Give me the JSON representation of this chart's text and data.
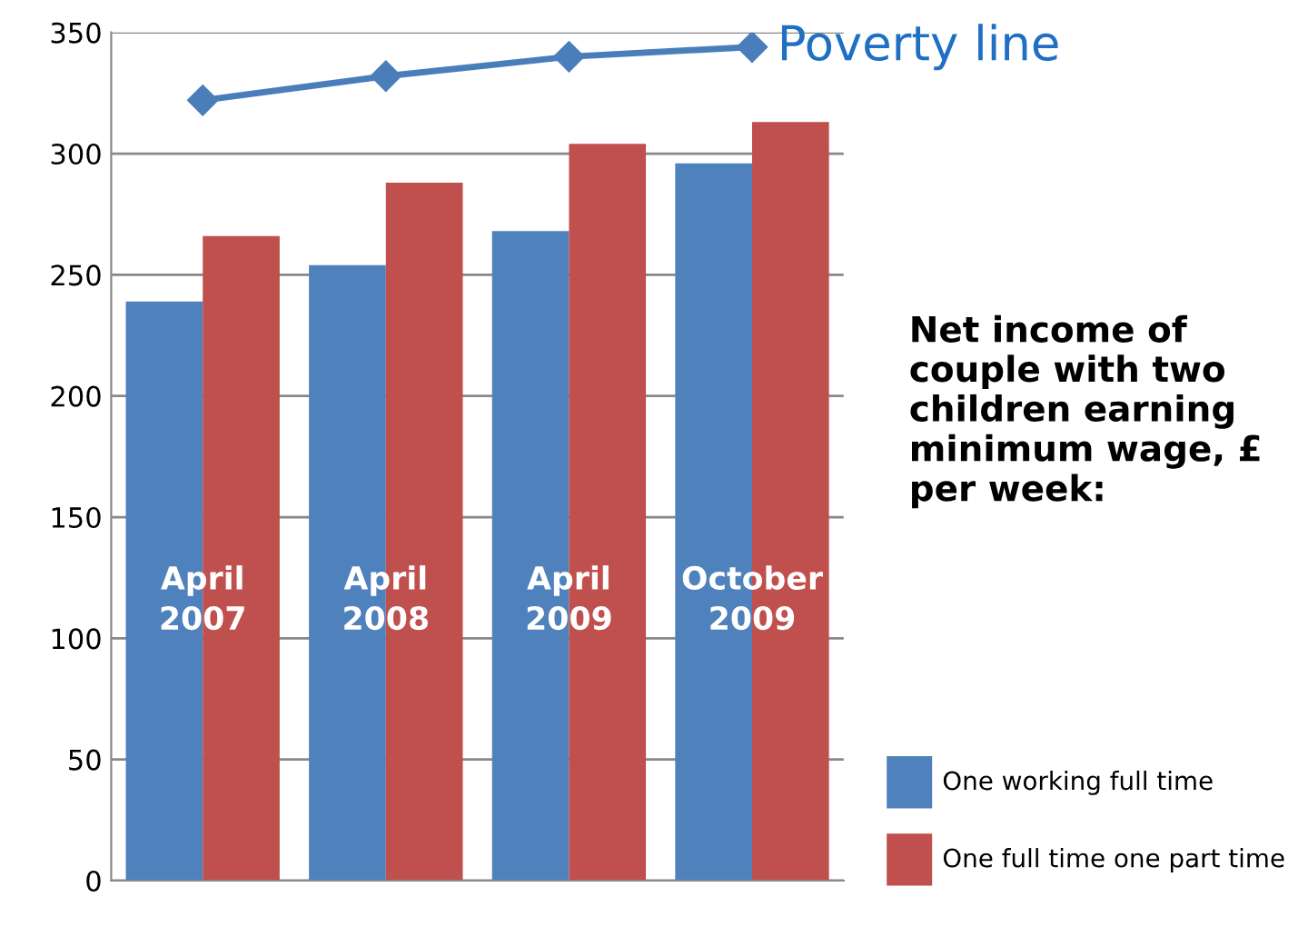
{
  "chart_data": {
    "type": "bar",
    "categories": [
      "April 2007",
      "April 2008",
      "April 2009",
      "October 2009"
    ],
    "series": [
      {
        "name": "One working full time",
        "color": "#4f81bd",
        "values": [
          239,
          254,
          268,
          296
        ]
      },
      {
        "name": "One full time one part time",
        "color": "#c0504d",
        "values": [
          266,
          288,
          304,
          313
        ]
      },
      {
        "name": "Poverty line",
        "type": "line",
        "color": "#4a7ebb",
        "values": [
          322,
          332,
          340,
          344
        ],
        "marker": "diamond",
        "line_style": "solid"
      }
    ],
    "legend_title": "Net income of couple with two children earning minimum wage, £ per week:",
    "ylim": [
      0,
      350
    ],
    "yticks": [
      0,
      50,
      100,
      150,
      200,
      250,
      300,
      350
    ],
    "grid": "y",
    "legend": "right"
  }
}
